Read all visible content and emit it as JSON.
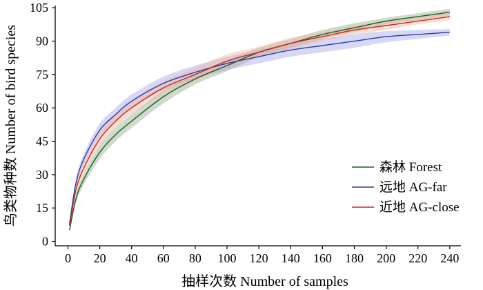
{
  "chart_data": {
    "type": "line",
    "xlabel": "抽样次数 Number of samples",
    "ylabel": "鸟类物种数 Number of bird species",
    "xlim": [
      -8,
      247
    ],
    "ylim": [
      -2,
      106
    ],
    "xticks": [
      0,
      20,
      40,
      60,
      80,
      100,
      120,
      140,
      160,
      180,
      200,
      220,
      240
    ],
    "yticks": [
      0,
      15,
      30,
      45,
      60,
      75,
      90,
      105
    ],
    "grid": false,
    "legend_position": "bottom-right",
    "series": [
      {
        "name": "森林 Forest",
        "color": "#1e5c1e",
        "band_color": "#8fb08f",
        "x": [
          1,
          5,
          10,
          20,
          30,
          40,
          60,
          80,
          100,
          120,
          140,
          160,
          180,
          200,
          220,
          240
        ],
        "y": [
          5,
          19,
          28,
          40,
          48,
          54,
          65,
          73,
          79,
          85,
          89,
          93,
          96,
          99,
          101,
          103
        ],
        "band": [
          1,
          2,
          2.5,
          3,
          3,
          3,
          3,
          2.5,
          2.5,
          2,
          2,
          2,
          2,
          1.5,
          1.5,
          1.5
        ]
      },
      {
        "name": "远地 AG-far",
        "color": "#2a3aa8",
        "band_color": "#a3a8e8",
        "x": [
          1,
          5,
          10,
          20,
          30,
          40,
          60,
          80,
          100,
          120,
          140,
          160,
          180,
          200,
          220,
          240
        ],
        "y": [
          8,
          26,
          37,
          50,
          57,
          63,
          71,
          76,
          80,
          83,
          86,
          88,
          90,
          92,
          93,
          94
        ],
        "band": [
          1,
          2,
          2.5,
          3,
          3,
          3,
          3,
          3,
          3,
          3,
          3,
          3,
          3,
          2.5,
          2,
          1.5
        ]
      },
      {
        "name": "近地 AG-close",
        "color": "#d42020",
        "band_color": "#f0b8a0",
        "x": [
          1,
          5,
          10,
          20,
          30,
          40,
          60,
          80,
          100,
          120,
          140,
          160,
          180,
          200,
          220,
          240
        ],
        "y": [
          7,
          23,
          33,
          46,
          54,
          60,
          69,
          75,
          81,
          85,
          89,
          92,
          95,
          97,
          99,
          101
        ],
        "band": [
          1,
          2,
          2.5,
          3,
          3,
          3,
          3,
          3,
          3,
          2.5,
          2.5,
          2,
          2,
          2,
          1.5,
          1.5
        ]
      }
    ]
  }
}
